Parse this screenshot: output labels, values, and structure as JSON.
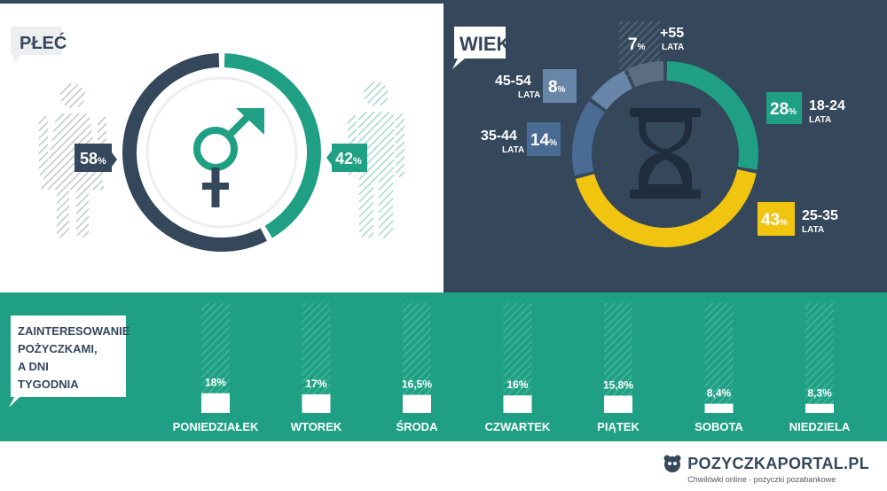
{
  "gender_section": {
    "title": "PŁEĆ",
    "female": {
      "value": 58,
      "label": "58",
      "unit": "%"
    },
    "male": {
      "value": 42,
      "label": "42",
      "unit": "%"
    },
    "colors": {
      "female": "#34475b",
      "male": "#1fa084"
    }
  },
  "age_section": {
    "title": "WIEK",
    "unit": "%",
    "groups": [
      {
        "range": "18-24",
        "sub": "LATA",
        "value": 28,
        "label": "28",
        "color": "#1fa084"
      },
      {
        "range": "25-35",
        "sub": "LATA",
        "value": 43,
        "label": "43",
        "color": "#f1c40f"
      },
      {
        "range": "35-44",
        "sub": "LATA",
        "value": 14,
        "label": "14",
        "color": "#4a6c94"
      },
      {
        "range": "45-54",
        "sub": "LATA",
        "value": 8,
        "label": "8",
        "color": "#6786a8"
      },
      {
        "range": "+55",
        "sub": "LATA",
        "value": 7,
        "label": "7",
        "color": "#5b6d80"
      }
    ]
  },
  "weekday_section": {
    "title_lines": [
      "ZAINTERESOWANIE",
      "POŻYCZKAMI,",
      "A DNI",
      "TYGODNIA"
    ],
    "bar_color": "#ffffff",
    "bar_max": 100
  },
  "chart_data": [
    {
      "type": "pie",
      "title": "PŁEĆ",
      "categories": [
        "",
        ""
      ],
      "values": [
        58,
        42
      ]
    },
    {
      "type": "pie",
      "title": "WIEK",
      "categories": [
        "18-24 LATA",
        "25-35 LATA",
        "35-44 LATA",
        "45-54 LATA",
        "+55 LATA"
      ],
      "values": [
        28,
        43,
        14,
        8,
        7
      ]
    },
    {
      "type": "bar",
      "title": "ZAINTERESOWANIE POŻYCZKAMI, A DNI TYGODNIA",
      "categories": [
        "PONIEDZIAŁEK",
        "WTOREK",
        "ŚRODA",
        "CZWARTEK",
        "PIĄTEK",
        "SOBOTA",
        "NIEDZIELA"
      ],
      "values": [
        18,
        17,
        16.5,
        16,
        15.8,
        8.4,
        8.3
      ],
      "value_labels": [
        "18%",
        "17%",
        "16,5%",
        "16%",
        "15,8%",
        "8,4%",
        "8,3%"
      ],
      "ylim": [
        0,
        100
      ]
    }
  ],
  "footer": {
    "brand": "POZYCZKAPORTAL.PL",
    "tagline": "Chwilówki online · pożyczki pozabankowe"
  }
}
